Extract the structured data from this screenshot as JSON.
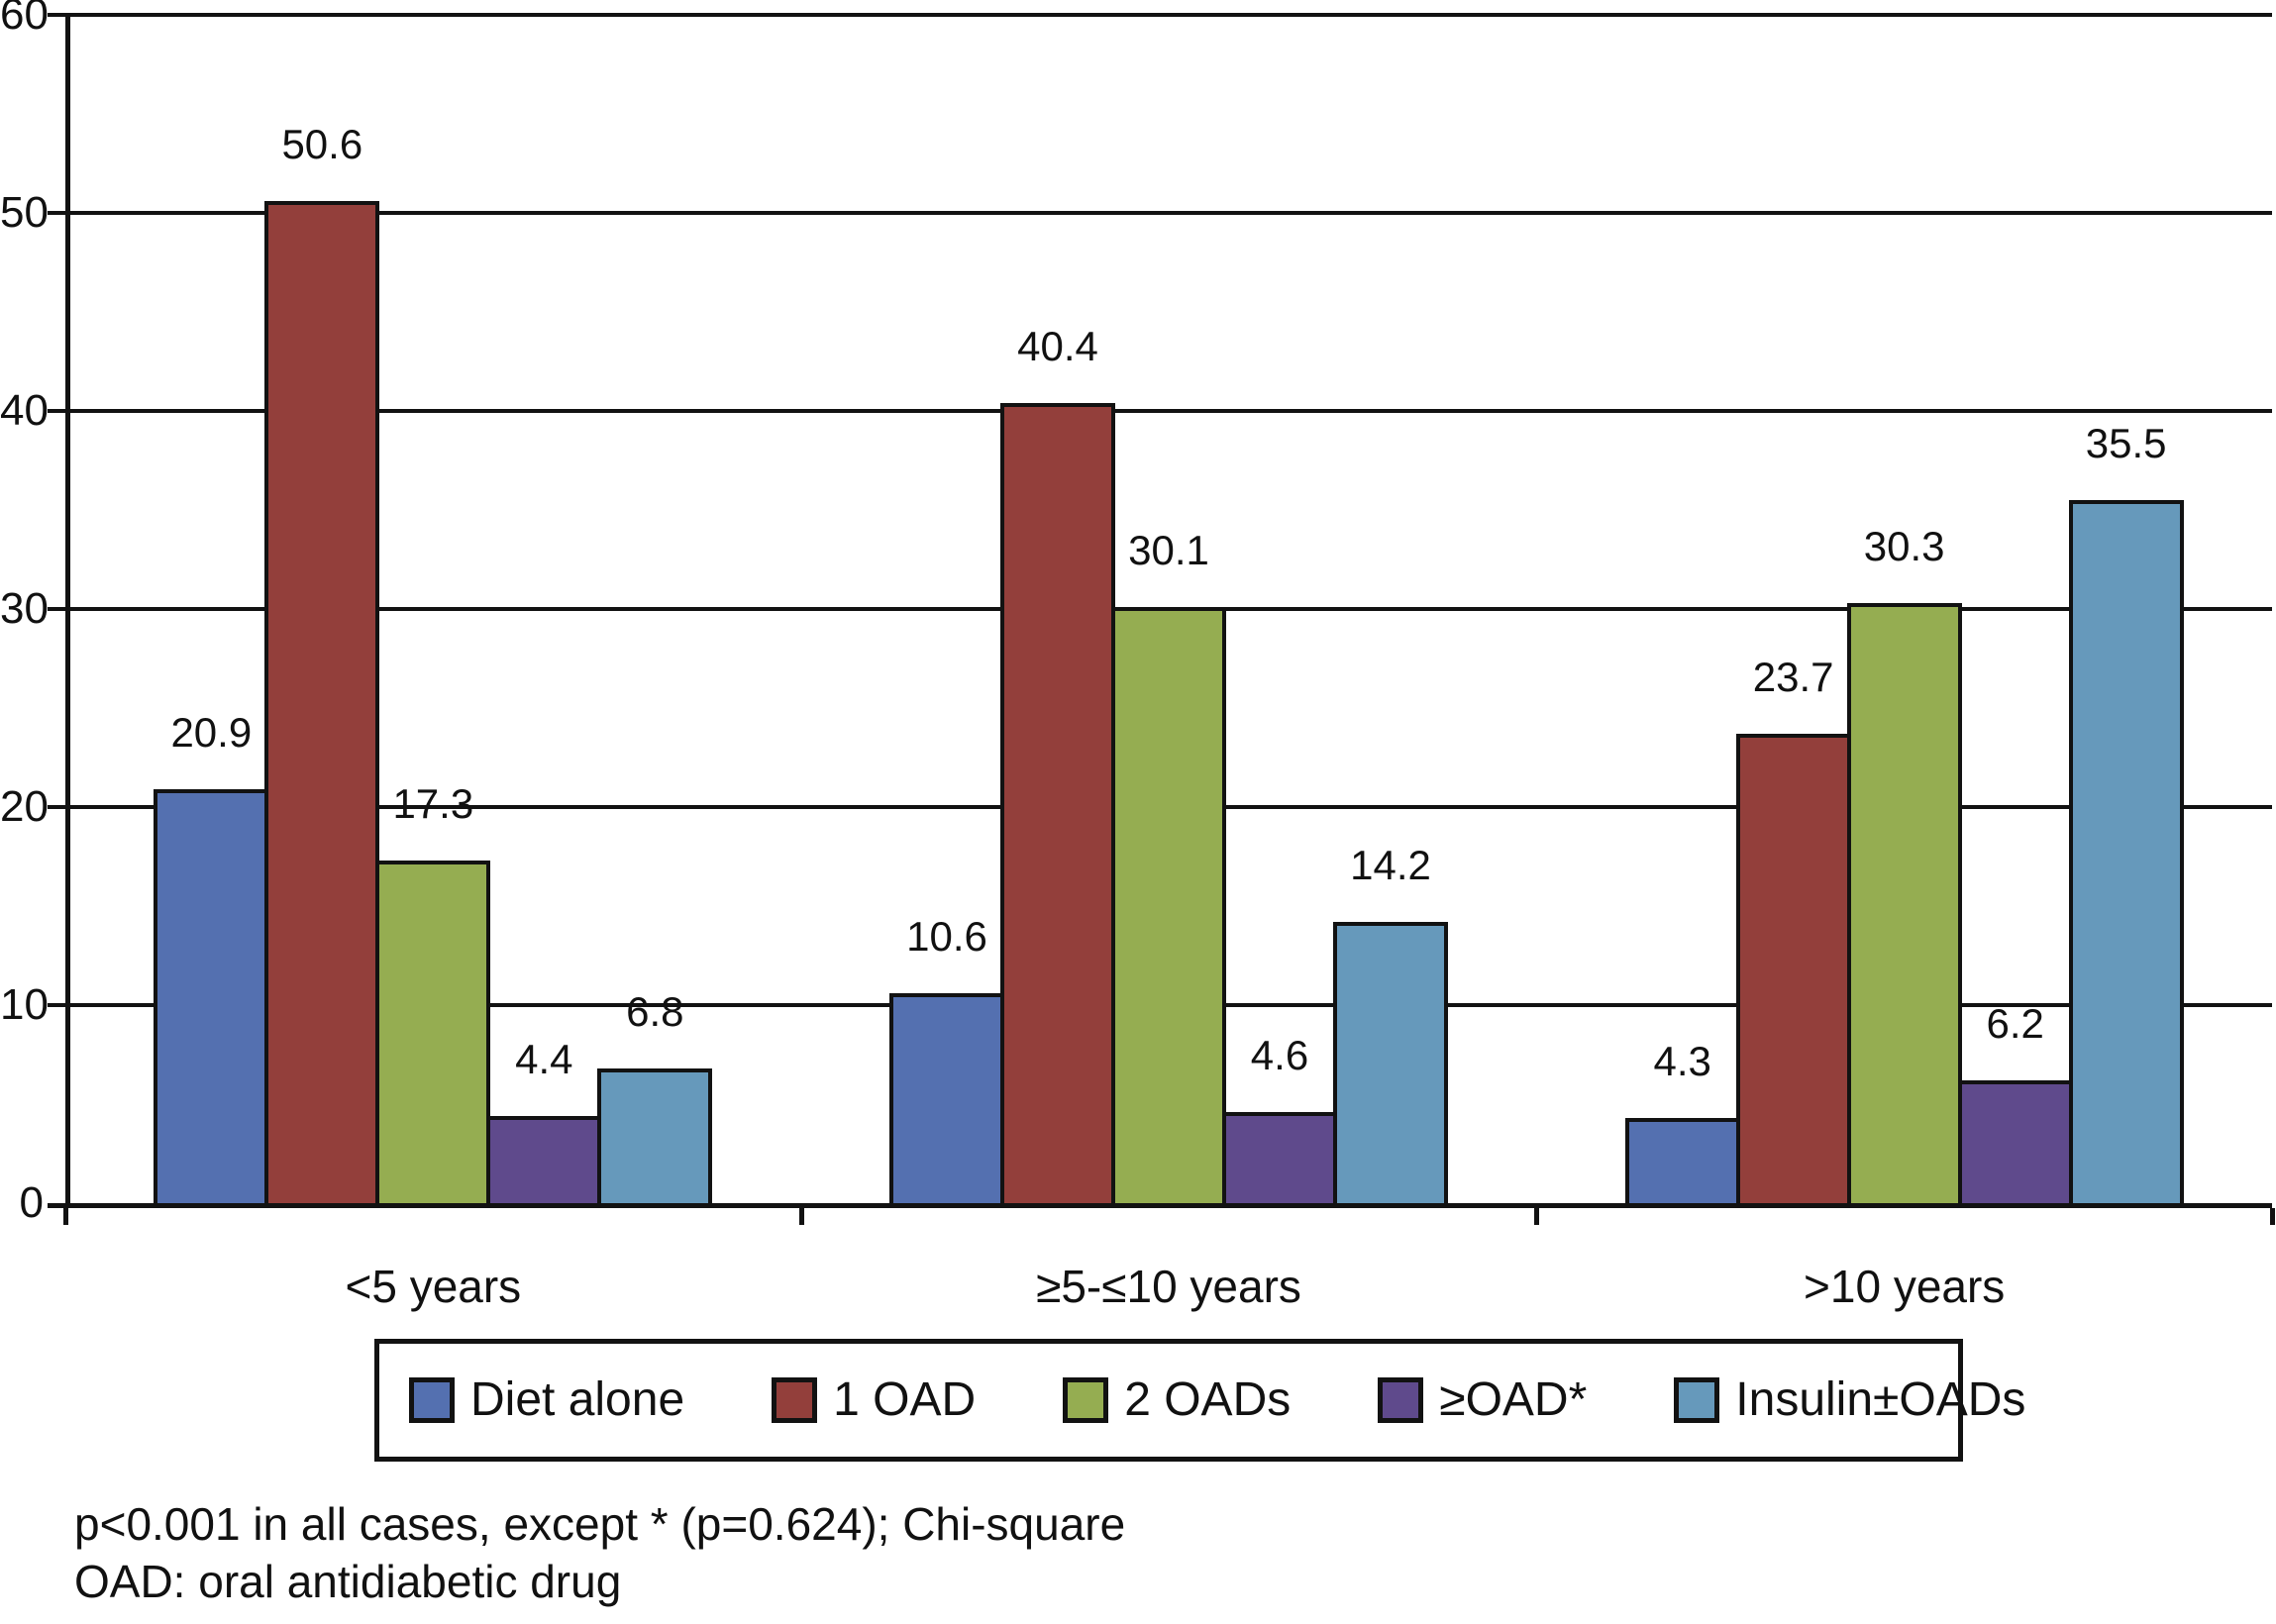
{
  "chart_data": {
    "type": "bar",
    "title": "",
    "xlabel": "",
    "ylabel": "",
    "categories": [
      "<5 years",
      "≥5-≤10 years",
      ">10 years"
    ],
    "series": [
      {
        "name": "Diet alone",
        "color": "#5470B0",
        "values": [
          20.9,
          10.6,
          4.3
        ]
      },
      {
        "name": "1 OAD",
        "color": "#933F3B",
        "values": [
          50.6,
          40.4,
          23.7
        ]
      },
      {
        "name": "2 OADs",
        "color": "#95AD51",
        "values": [
          17.3,
          30.1,
          30.3
        ]
      },
      {
        "name": "≥OAD*",
        "color": "#5F4A8C",
        "values": [
          4.4,
          4.6,
          6.2
        ]
      },
      {
        "name": "Insulin±OADs",
        "color": "#6699BB",
        "values": [
          6.8,
          14.2,
          35.5
        ]
      }
    ],
    "ylim": [
      0,
      60
    ],
    "yticks": [
      0,
      10,
      20,
      30,
      40,
      50,
      60
    ],
    "grid": true,
    "value_labels": true,
    "legend_position": "bottom",
    "axis_color": "#121212",
    "background_color": "#ffffff"
  },
  "footnotes": [
    "p<0.001 in all cases, except * (p=0.624); Chi-square",
    "OAD: oral antidiabetic drug"
  ]
}
